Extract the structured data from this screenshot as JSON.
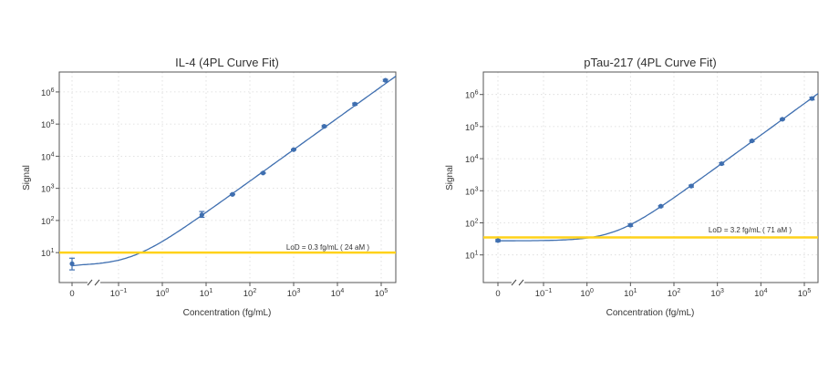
{
  "colors": {
    "curve": "#3f6fb0",
    "points": "#3f6fb0",
    "lod_line": "#ffd21a",
    "grid": "#d9d9d9"
  },
  "chart_data": [
    {
      "type": "scatter",
      "title": "IL-4 (4PL Curve Fit)",
      "xlabel": "Concentration (fg/mL)",
      "ylabel": "Signal",
      "x_scale": "log (with zero shown left of axis break)",
      "y_scale": "log",
      "x_ticks": [
        {
          "value": 0,
          "base": "0",
          "exp": ""
        },
        {
          "value": 0.1,
          "base": "10",
          "exp": "−1"
        },
        {
          "value": 1,
          "base": "10",
          "exp": "0"
        },
        {
          "value": 10,
          "base": "10",
          "exp": "1"
        },
        {
          "value": 100,
          "base": "10",
          "exp": "2"
        },
        {
          "value": 1000,
          "base": "10",
          "exp": "3"
        },
        {
          "value": 10000,
          "base": "10",
          "exp": "4"
        },
        {
          "value": 100000,
          "base": "10",
          "exp": "5"
        }
      ],
      "y_ticks": [
        {
          "value": 10,
          "base": "10",
          "exp": "1"
        },
        {
          "value": 100,
          "base": "10",
          "exp": "2"
        },
        {
          "value": 1000,
          "base": "10",
          "exp": "3"
        },
        {
          "value": 10000,
          "base": "10",
          "exp": "4"
        },
        {
          "value": 100000,
          "base": "10",
          "exp": "5"
        },
        {
          "value": 1000000,
          "base": "10",
          "exp": "6"
        }
      ],
      "grid": true,
      "points": [
        {
          "x": 0,
          "y": 4.5,
          "y_low": 2.9,
          "y_high": 6.7
        },
        {
          "x": 8,
          "y": 150,
          "y_low": 125,
          "y_high": 190
        },
        {
          "x": 40,
          "y": 650,
          "y_low": 630,
          "y_high": 670
        },
        {
          "x": 200,
          "y": 3000,
          "y_low": 2900,
          "y_high": 3100
        },
        {
          "x": 1000,
          "y": 16000,
          "y_low": 15500,
          "y_high": 16500
        },
        {
          "x": 5000,
          "y": 85000,
          "y_low": 80000,
          "y_high": 90000
        },
        {
          "x": 25000,
          "y": 420000,
          "y_low": 390000,
          "y_high": 450000
        },
        {
          "x": 125000,
          "y": 2300000,
          "y_low": 2150000,
          "y_high": 2450000
        }
      ],
      "fit": {
        "model": "4PL",
        "bottom": 3.9,
        "slope_per_decade": 0.98,
        "anchor_x": 1000,
        "anchor_y": 16000
      },
      "lod": {
        "signal": 10,
        "label": "LoD = 0.3 fg/mL ( 24 aM )"
      }
    },
    {
      "type": "scatter",
      "title": "pTau-217 (4PL Curve Fit)",
      "xlabel": "Concentration (fg/mL)",
      "ylabel": "Signal",
      "x_scale": "log (with zero shown left of axis break)",
      "y_scale": "log",
      "x_ticks": [
        {
          "value": 0,
          "base": "0",
          "exp": ""
        },
        {
          "value": 0.1,
          "base": "10",
          "exp": "−1"
        },
        {
          "value": 1,
          "base": "10",
          "exp": "0"
        },
        {
          "value": 10,
          "base": "10",
          "exp": "1"
        },
        {
          "value": 100,
          "base": "10",
          "exp": "2"
        },
        {
          "value": 1000,
          "base": "10",
          "exp": "3"
        },
        {
          "value": 10000,
          "base": "10",
          "exp": "4"
        },
        {
          "value": 100000,
          "base": "10",
          "exp": "5"
        }
      ],
      "y_ticks": [
        {
          "value": 10,
          "base": "10",
          "exp": "1"
        },
        {
          "value": 100,
          "base": "10",
          "exp": "2"
        },
        {
          "value": 1000,
          "base": "10",
          "exp": "3"
        },
        {
          "value": 10000,
          "base": "10",
          "exp": "4"
        },
        {
          "value": 100000,
          "base": "10",
          "exp": "5"
        },
        {
          "value": 1000000,
          "base": "10",
          "exp": "6"
        }
      ],
      "grid": true,
      "points": [
        {
          "x": 0,
          "y": 28,
          "y_low": 26,
          "y_high": 30
        },
        {
          "x": 10,
          "y": 85,
          "y_low": 78,
          "y_high": 92
        },
        {
          "x": 50,
          "y": 330,
          "y_low": 315,
          "y_high": 345
        },
        {
          "x": 250,
          "y": 1400,
          "y_low": 1300,
          "y_high": 1500
        },
        {
          "x": 1250,
          "y": 7000,
          "y_low": 6500,
          "y_high": 7500
        },
        {
          "x": 6250,
          "y": 36000,
          "y_low": 34000,
          "y_high": 38000
        },
        {
          "x": 31250,
          "y": 170000,
          "y_low": 162000,
          "y_high": 178000
        },
        {
          "x": 150000,
          "y": 750000,
          "y_low": 680000,
          "y_high": 820000
        }
      ],
      "fit": {
        "model": "4PL",
        "bottom": 27.5,
        "slope_per_decade": 0.985,
        "anchor_x": 1250,
        "anchor_y": 7000
      },
      "lod": {
        "signal": 35,
        "label": "LoD = 3.2 fg/mL ( 71 aM )"
      }
    }
  ]
}
